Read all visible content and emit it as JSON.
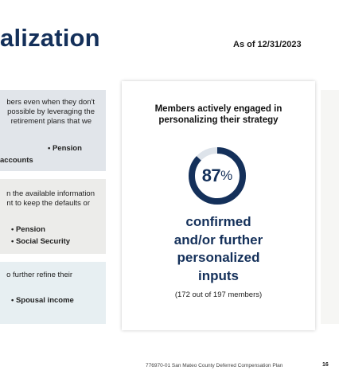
{
  "header": {
    "title": "alization",
    "as_of": "As of 12/31/2023"
  },
  "panels": [
    {
      "lines": [
        "bers even when they don't",
        "possible by leveraging the",
        "retirement plans that we"
      ],
      "bullet": "• Pension",
      "bold_line": "accounts"
    },
    {
      "lines": [
        "n the available information",
        "nt to keep the defaults or"
      ],
      "bullets": [
        "• Pension",
        "• Social Security"
      ]
    },
    {
      "lines": [
        "o further refine their"
      ],
      "bullets": [
        "• Spousal income"
      ]
    }
  ],
  "card": {
    "heading_line1": "Members actively engaged in",
    "heading_line2": "personalizing their strategy",
    "percent_value": "87",
    "percent_sign": "%",
    "percent_fraction": 0.87,
    "ring_color": "#14305a",
    "ring_track_color": "#dde3ea",
    "big_lines": [
      "confirmed",
      "and/or further",
      "personalized",
      "inputs"
    ],
    "sub_text": "(172 out of 197 members)"
  },
  "footer": {
    "text": "776970-01 San Mateo County Deferred Compensation Plan",
    "page_number": "16"
  }
}
